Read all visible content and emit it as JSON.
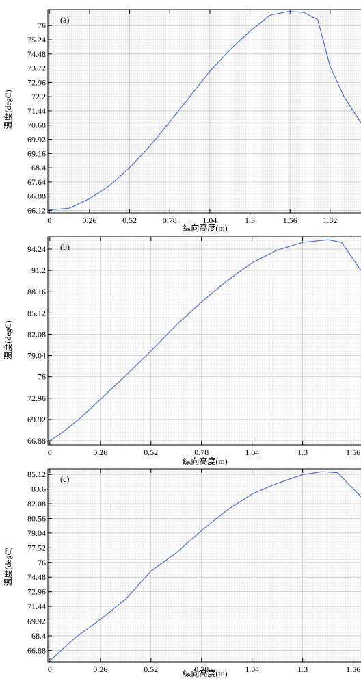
{
  "chart_data": [
    {
      "type": "line",
      "panel_label": "(a)",
      "xlabel": "纵向高度(m)",
      "ylabel": "温度(degC)",
      "xlim": [
        -0.01,
        2.02
      ],
      "ylim": [
        65.99,
        76.85
      ],
      "xticks": [
        0,
        0.26,
        0.52,
        0.78,
        1.04,
        1.3,
        1.56,
        1.82
      ],
      "xtick_labels": [
        "0",
        "0.26",
        "0.52",
        "0.78",
        "1.04",
        "1.3",
        "1.56",
        "1.82"
      ],
      "yticks": [
        66.12,
        66.88,
        67.64,
        68.4,
        69.16,
        69.92,
        70.68,
        71.44,
        72.2,
        72.96,
        73.72,
        74.48,
        75.24,
        76
      ],
      "ytick_labels": [
        "66.12",
        "66.88",
        "67.64",
        "68.4",
        "69.16",
        "69.92",
        "70.68",
        "71.44",
        "72.2",
        "72.96",
        "73.72",
        "74.48",
        "75.24",
        "76"
      ],
      "grid": true,
      "line_color": "#4a6fd8",
      "series": [
        {
          "x": [
            0,
            0.13,
            0.26,
            0.39,
            0.52,
            0.65,
            0.78,
            0.91,
            1.04,
            1.17,
            1.3,
            1.43,
            1.55,
            1.65,
            1.74,
            1.82,
            1.91,
            2.02
          ],
          "values": [
            66.15,
            66.24,
            66.75,
            67.45,
            68.4,
            69.55,
            70.85,
            72.2,
            73.55,
            74.7,
            75.7,
            76.55,
            76.75,
            76.7,
            76.3,
            73.8,
            72.2,
            70.8
          ]
        }
      ]
    },
    {
      "type": "line",
      "panel_label": "(b)",
      "xlabel": "纵向高度(m)",
      "ylabel": "温度(degC)",
      "xlim": [
        -0.01,
        1.6
      ],
      "ylim": [
        66.3,
        96.0
      ],
      "xticks": [
        0,
        0.26,
        0.52,
        0.78,
        1.04,
        1.3,
        1.56
      ],
      "xtick_labels": [
        "0",
        "0.26",
        "0.52",
        "0.78",
        "1.04",
        "1.3",
        "1.56"
      ],
      "yticks": [
        66.88,
        69.92,
        72.96,
        76,
        79.04,
        82.08,
        85.12,
        88.16,
        91.2,
        94.24
      ],
      "ytick_labels": [
        "66.88",
        "69.92",
        "72.96",
        "76",
        "79.04",
        "82.08",
        "85.12",
        "88.16",
        "91.2",
        "94.24"
      ],
      "grid": true,
      "line_color": "#4a6fd8",
      "series": [
        {
          "x": [
            0,
            0.08,
            0.16,
            0.26,
            0.39,
            0.52,
            0.65,
            0.78,
            0.91,
            1.04,
            1.17,
            1.3,
            1.43,
            1.5,
            1.6
          ],
          "values": [
            66.88,
            68.4,
            70.2,
            72.8,
            76.2,
            79.7,
            83.4,
            86.7,
            89.7,
            92.3,
            94.1,
            95.2,
            95.6,
            95.2,
            91.2
          ]
        }
      ]
    },
    {
      "type": "line",
      "panel_label": "(c)",
      "xlabel": "纵向高度(m)",
      "ylabel": "温度(degC)",
      "xlim": [
        -0.01,
        1.6
      ],
      "ylim": [
        65.7,
        85.7
      ],
      "xticks": [
        0,
        0.26,
        0.52,
        0.78,
        1.04,
        1.3,
        1.56
      ],
      "xtick_labels": [
        "0",
        "0.26",
        "0.52",
        "0.78",
        "1.04",
        "1.3",
        "1.56"
      ],
      "yticks": [
        66.88,
        68.4,
        69.92,
        71.44,
        72.96,
        74.48,
        76,
        77.52,
        79.04,
        80.56,
        82.08,
        83.6,
        85.12
      ],
      "ytick_labels": [
        "66.88",
        "68.4",
        "69.92",
        "71.44",
        "72.96",
        "74.48",
        "76",
        "77.52",
        "79.04",
        "80.56",
        "82.08",
        "83.6",
        "85.12"
      ],
      "grid": true,
      "line_color": "#4a6fd8",
      "series": [
        {
          "x": [
            0,
            0.13,
            0.26,
            0.39,
            0.52,
            0.65,
            0.78,
            0.91,
            1.04,
            1.17,
            1.3,
            1.4,
            1.48,
            1.6
          ],
          "values": [
            65.8,
            68.2,
            70.1,
            72.2,
            75.1,
            77.0,
            79.3,
            81.4,
            83.1,
            84.2,
            85.1,
            85.4,
            85.3,
            82.8
          ]
        }
      ]
    }
  ]
}
